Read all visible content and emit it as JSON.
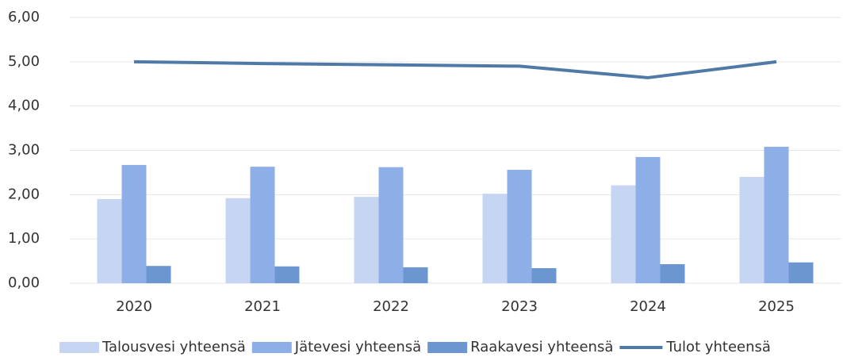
{
  "chart_data": {
    "type": "bar",
    "categories": [
      "2020",
      "2021",
      "2022",
      "2023",
      "2024",
      "2025"
    ],
    "series": [
      {
        "name": "Talousvesi yhteensä",
        "color": "#c6d6f2",
        "type": "bar",
        "values": [
          1.9,
          1.92,
          1.95,
          2.02,
          2.21,
          2.4
        ]
      },
      {
        "name": "Jätevesi yhteensä",
        "color": "#8eaee8",
        "type": "bar",
        "values": [
          2.67,
          2.63,
          2.62,
          2.56,
          2.85,
          3.08
        ]
      },
      {
        "name": "Raakavesi yhteensä",
        "color": "#6b96d0",
        "type": "bar",
        "values": [
          0.39,
          0.38,
          0.36,
          0.34,
          0.43,
          0.47
        ]
      },
      {
        "name": "Tulot yhteensä",
        "color": "#4f7aa8",
        "type": "line",
        "values": [
          5.0,
          4.96,
          4.93,
          4.9,
          4.64,
          5.0
        ]
      }
    ],
    "ylim": [
      0,
      6
    ],
    "yticks": [
      {
        "value": 0,
        "label": "0,00"
      },
      {
        "value": 1,
        "label": "1,00"
      },
      {
        "value": 2,
        "label": "2,00"
      },
      {
        "value": 3,
        "label": "3,00"
      },
      {
        "value": 4,
        "label": "4,00"
      },
      {
        "value": 5,
        "label": "5,00"
      },
      {
        "value": 6,
        "label": "6,00"
      }
    ],
    "grid": true,
    "legend": "bottom"
  }
}
